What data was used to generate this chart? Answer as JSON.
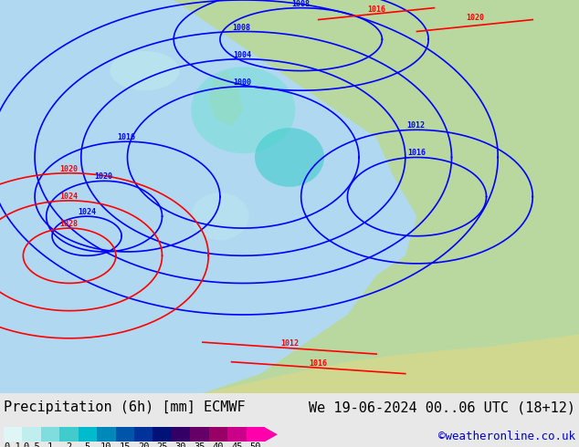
{
  "title_left": "Precipitation (6h) [mm] ECMWF",
  "title_right": "We 19-06-2024 00..06 UTC (18+12)",
  "credit": "©weatheronline.co.uk",
  "colorbar_values": [
    0.1,
    0.5,
    1,
    2,
    5,
    10,
    15,
    20,
    25,
    30,
    35,
    40,
    45,
    50
  ],
  "colorbar_colors": [
    "#e0f5f5",
    "#c0eeee",
    "#80dddd",
    "#40cccc",
    "#00bbcc",
    "#0088bb",
    "#0055aa",
    "#003399",
    "#001177",
    "#330066",
    "#660066",
    "#990066",
    "#cc0088",
    "#ff00aa"
  ],
  "bg_color": "#e8e8e8",
  "map_bg": "#c8e8c8",
  "font_size_title": 11,
  "font_size_labels": 9,
  "font_size_credit": 9,
  "colorbar_label_color": "#000000",
  "title_color": "#000000",
  "credit_color": "#0000cc"
}
